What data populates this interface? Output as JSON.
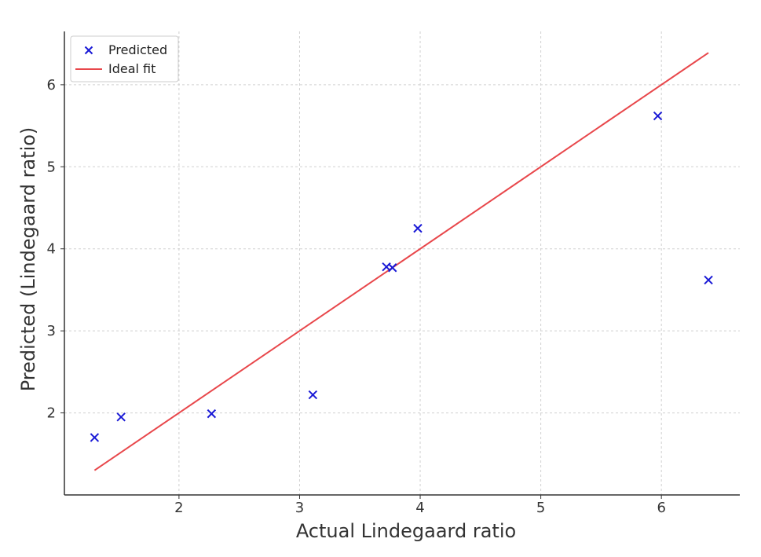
{
  "chart_data": {
    "type": "scatter",
    "title": "",
    "xlabel": "Actual Lindegaard ratio",
    "ylabel": "Predicted (Lindegaard ratio)",
    "xlim": [
      1.05,
      6.65
    ],
    "ylim": [
      1.0,
      6.65
    ],
    "xticks": [
      2,
      3,
      4,
      5,
      6
    ],
    "yticks": [
      2,
      3,
      4,
      5,
      6
    ],
    "grid": true,
    "legend_position": "top-left",
    "series": [
      {
        "name": "Predicted",
        "kind": "scatter",
        "marker": "x",
        "color": "#1a1ad6",
        "x": [
          1.3,
          1.52,
          2.27,
          3.11,
          3.72,
          3.77,
          3.98,
          5.97,
          6.39
        ],
        "y": [
          1.7,
          1.95,
          1.99,
          2.22,
          3.78,
          3.77,
          4.25,
          5.62,
          3.62
        ]
      },
      {
        "name": "Ideal fit",
        "kind": "line",
        "color": "#e8474b",
        "x": [
          1.3,
          6.39
        ],
        "y": [
          1.3,
          6.39
        ]
      }
    ]
  }
}
